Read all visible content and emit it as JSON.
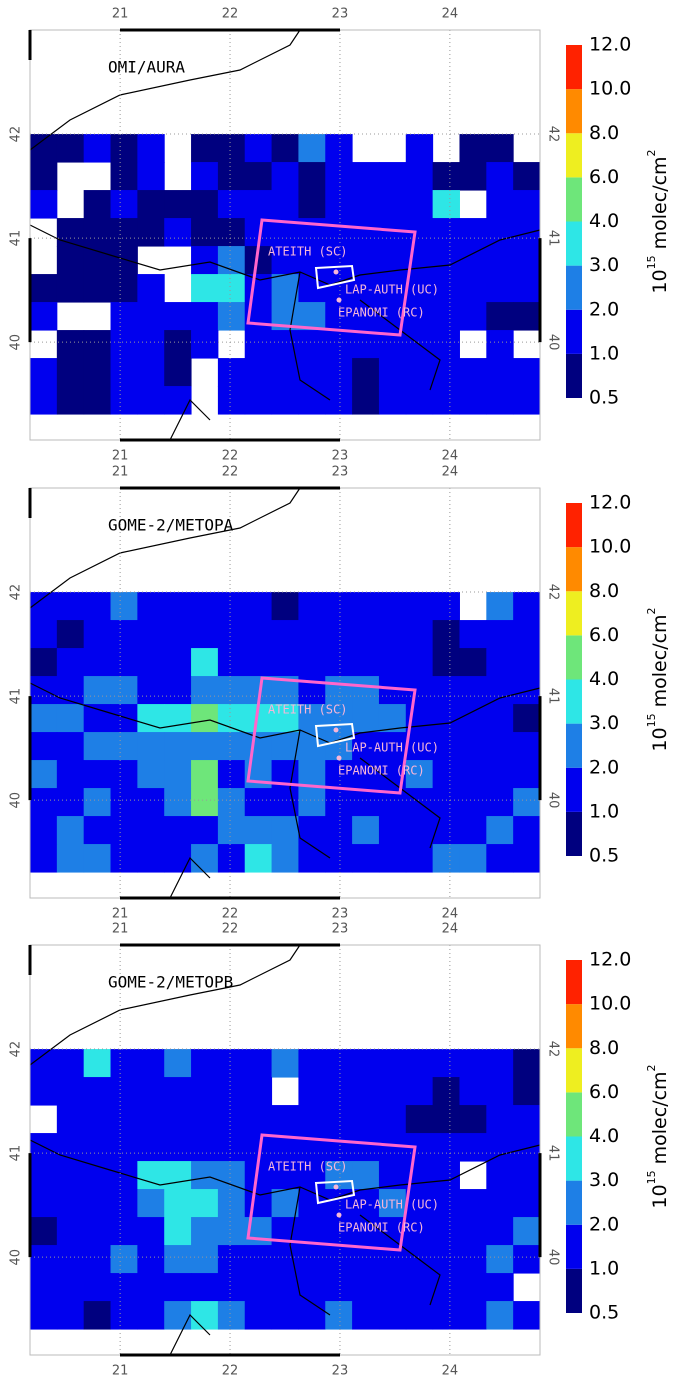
{
  "panels": [
    {
      "title": "OMI/AURA",
      "xlim": [
        20.18,
        24.82
      ],
      "ylim": [
        39.06,
        43.0
      ],
      "xticks": [
        21,
        22,
        23,
        24
      ],
      "yticks": [
        40,
        41,
        42
      ],
      "cells": [
        [
          0.8,
          0.8,
          1.5,
          0.8,
          1.5,
          null,
          0.8,
          0.8,
          1.5,
          0.8,
          2.5,
          1.5,
          null,
          null,
          1.5,
          null,
          0.8,
          0.8,
          null
        ],
        [
          0.8,
          null,
          null,
          0.8,
          1.5,
          null,
          1.5,
          0.8,
          0.8,
          1.5,
          0.8,
          1.5,
          1.5,
          1.5,
          1.5,
          0.8,
          0.8,
          1.5,
          0.8
        ],
        [
          1.5,
          null,
          0.8,
          1.5,
          0.8,
          0.8,
          0.8,
          1.5,
          1.5,
          1.5,
          0.8,
          1.5,
          1.5,
          1.5,
          1.5,
          3.5,
          null,
          1.5,
          1.5
        ],
        [
          null,
          0.8,
          0.8,
          0.8,
          0.8,
          1.5,
          0.8,
          0.8,
          1.5,
          1.5,
          1.5,
          1.5,
          1.5,
          1.5,
          1.5,
          1.5,
          1.5,
          1.5,
          1.5
        ],
        [
          null,
          0.8,
          0.8,
          0.8,
          null,
          null,
          1.5,
          2.5,
          0.8,
          1.5,
          1.5,
          1.5,
          1.5,
          1.5,
          1.5,
          1.5,
          1.5,
          1.5,
          1.5
        ],
        [
          0.8,
          0.8,
          0.8,
          0.8,
          1.5,
          null,
          3.5,
          3.5,
          1.5,
          2.5,
          1.5,
          1.5,
          1.5,
          1.5,
          1.5,
          1.5,
          1.5,
          1.5,
          1.5
        ],
        [
          1.5,
          null,
          null,
          1.5,
          1.5,
          1.5,
          1.5,
          2.5,
          1.5,
          2.5,
          2.5,
          1.5,
          1.5,
          1.5,
          1.5,
          1.5,
          1.5,
          0.8,
          0.8
        ],
        [
          null,
          0.8,
          0.8,
          1.5,
          1.5,
          0.8,
          1.5,
          null,
          1.5,
          1.5,
          1.5,
          1.5,
          1.5,
          1.5,
          1.5,
          1.5,
          null,
          1.5,
          null
        ],
        [
          1.5,
          0.8,
          0.8,
          1.5,
          1.5,
          0.8,
          null,
          1.5,
          1.5,
          1.5,
          1.5,
          1.5,
          0.8,
          1.5,
          1.5,
          1.5,
          1.5,
          1.5,
          1.5
        ],
        [
          1.5,
          0.8,
          0.8,
          1.5,
          1.5,
          1.5,
          null,
          1.5,
          1.5,
          1.5,
          1.5,
          1.5,
          0.8,
          1.5,
          1.5,
          1.5,
          1.5,
          1.5,
          1.5
        ]
      ]
    },
    {
      "title": "GOME-2/METOPA",
      "xlim": [
        20.18,
        24.82
      ],
      "ylim": [
        39.06,
        43.0
      ],
      "xticks": [
        21,
        22,
        23,
        24
      ],
      "yticks": [
        40,
        41,
        42
      ],
      "cells": [
        [
          1.5,
          1.5,
          1.5,
          2.5,
          1.5,
          1.5,
          1.5,
          1.5,
          1.5,
          0.8,
          1.5,
          1.5,
          1.5,
          1.5,
          1.5,
          1.5,
          null,
          2.5,
          1.5
        ],
        [
          1.5,
          0.8,
          1.5,
          1.5,
          1.5,
          1.5,
          1.5,
          1.5,
          1.5,
          1.5,
          1.5,
          1.5,
          1.5,
          1.5,
          1.5,
          0.8,
          1.5,
          1.5,
          1.5
        ],
        [
          0.8,
          1.5,
          1.5,
          1.5,
          1.5,
          1.5,
          3.5,
          1.5,
          1.5,
          1.5,
          1.5,
          1.5,
          1.5,
          1.5,
          1.5,
          0.8,
          0.8,
          1.5,
          1.5
        ],
        [
          1.5,
          1.5,
          2.5,
          2.5,
          1.5,
          1.5,
          2.5,
          2.5,
          2.5,
          2.5,
          1.5,
          2.5,
          2.5,
          1.5,
          1.5,
          1.5,
          1.5,
          1.5,
          1.5
        ],
        [
          2.5,
          2.5,
          1.5,
          1.5,
          3.5,
          3.5,
          5,
          3.5,
          3.5,
          3.5,
          2.5,
          2.5,
          2.5,
          2.5,
          1.5,
          1.5,
          1.5,
          1.5,
          0.8
        ],
        [
          1.5,
          1.5,
          2.5,
          2.5,
          2.5,
          2.5,
          2.5,
          2.5,
          2.5,
          2.5,
          2.5,
          2.5,
          1.5,
          1.5,
          1.5,
          1.5,
          1.5,
          1.5,
          1.5
        ],
        [
          2.5,
          1.5,
          1.5,
          1.5,
          2.5,
          2.5,
          5,
          1.5,
          2.5,
          1.5,
          2.5,
          1.5,
          1.5,
          1.5,
          2.5,
          1.5,
          1.5,
          1.5,
          1.5
        ],
        [
          1.5,
          1.5,
          2.5,
          1.5,
          1.5,
          2.5,
          5,
          2.5,
          1.5,
          1.5,
          2.5,
          1.5,
          1.5,
          1.5,
          1.5,
          1.5,
          1.5,
          1.5,
          2.5
        ],
        [
          1.5,
          2.5,
          1.5,
          1.5,
          1.5,
          1.5,
          1.5,
          2.5,
          2.5,
          2.5,
          1.5,
          1.5,
          2.5,
          1.5,
          1.5,
          1.5,
          1.5,
          2.5,
          1.5
        ],
        [
          1.5,
          2.5,
          2.5,
          1.5,
          1.5,
          1.5,
          2.5,
          1.5,
          3.5,
          2.5,
          1.5,
          1.5,
          1.5,
          1.5,
          1.5,
          2.5,
          2.5,
          1.5,
          1.5
        ]
      ]
    },
    {
      "title": "GOME-2/METOPB",
      "xlim": [
        20.18,
        24.82
      ],
      "ylim": [
        39.06,
        43.0
      ],
      "xticks": [
        21,
        22,
        23,
        24
      ],
      "yticks": [
        40,
        41,
        42
      ],
      "cells": [
        [
          1.5,
          1.5,
          3.5,
          1.5,
          1.5,
          2.5,
          1.5,
          1.5,
          1.5,
          2.5,
          1.5,
          1.5,
          1.5,
          1.5,
          1.5,
          1.5,
          1.5,
          1.5,
          0.8
        ],
        [
          1.5,
          1.5,
          1.5,
          1.5,
          1.5,
          1.5,
          1.5,
          1.5,
          1.5,
          null,
          1.5,
          1.5,
          1.5,
          1.5,
          1.5,
          0.8,
          1.5,
          1.5,
          0.8
        ],
        [
          null,
          1.5,
          1.5,
          1.5,
          1.5,
          1.5,
          1.5,
          1.5,
          1.5,
          1.5,
          1.5,
          1.5,
          1.5,
          1.5,
          0.8,
          0.8,
          0.8,
          1.5,
          1.5
        ],
        [
          1.5,
          1.5,
          1.5,
          1.5,
          1.5,
          1.5,
          1.5,
          1.5,
          1.5,
          1.5,
          1.5,
          1.5,
          1.5,
          1.5,
          1.5,
          1.5,
          1.5,
          1.5,
          1.5
        ],
        [
          1.5,
          1.5,
          1.5,
          1.5,
          3.5,
          3.5,
          2.5,
          2.5,
          1.5,
          1.5,
          1.5,
          2.5,
          2.5,
          1.5,
          1.5,
          1.5,
          null,
          1.5,
          1.5
        ],
        [
          1.5,
          1.5,
          1.5,
          1.5,
          2.5,
          3.5,
          3.5,
          2.5,
          1.5,
          2.5,
          1.5,
          1.5,
          1.5,
          2.5,
          1.5,
          1.5,
          1.5,
          1.5,
          1.5
        ],
        [
          0.8,
          1.5,
          1.5,
          1.5,
          1.5,
          3.5,
          2.5,
          2.5,
          2.5,
          1.5,
          1.5,
          1.5,
          1.5,
          1.5,
          1.5,
          1.5,
          1.5,
          1.5,
          2.5
        ],
        [
          1.5,
          1.5,
          1.5,
          2.5,
          1.5,
          2.5,
          2.5,
          1.5,
          1.5,
          1.5,
          1.5,
          1.5,
          1.5,
          1.5,
          1.5,
          1.5,
          1.5,
          2.5,
          1.5
        ],
        [
          1.5,
          1.5,
          1.5,
          1.5,
          1.5,
          1.5,
          1.5,
          1.5,
          1.5,
          1.5,
          1.5,
          1.5,
          1.5,
          1.5,
          1.5,
          1.5,
          1.5,
          1.5,
          null
        ],
        [
          1.5,
          1.5,
          0.8,
          1.5,
          1.5,
          2.5,
          3.5,
          2.5,
          1.5,
          1.5,
          1.5,
          2.5,
          1.5,
          1.5,
          1.5,
          1.5,
          1.5,
          2.5,
          1.5
        ]
      ]
    }
  ],
  "sites": [
    "ATEITH (SC)",
    "LAP-AUTH (UC)",
    "EPANOMI (RC)"
  ],
  "colorbar": {
    "ticks": [
      {
        "value": 0.5,
        "label": "0.5"
      },
      {
        "value": 1,
        "label": "1.0"
      },
      {
        "value": 2,
        "label": "2.0"
      },
      {
        "value": 3,
        "label": "3.0"
      },
      {
        "value": 4,
        "label": "4.0"
      },
      {
        "value": 6,
        "label": "6.0"
      },
      {
        "value": 8,
        "label": "8.0"
      },
      {
        "value": 10,
        "label": "10.0"
      },
      {
        "value": 12,
        "label": "12.0"
      }
    ],
    "colors": [
      "#00007f",
      "#0000ee",
      "#1e7fe6",
      "#2ee6e6",
      "#6ee67a",
      "#eeee20",
      "#ff8a00",
      "#ff2200"
    ],
    "unit": {
      "base": "10",
      "exp": "15",
      "text": " molec/cm",
      "exp2": "2"
    }
  }
}
